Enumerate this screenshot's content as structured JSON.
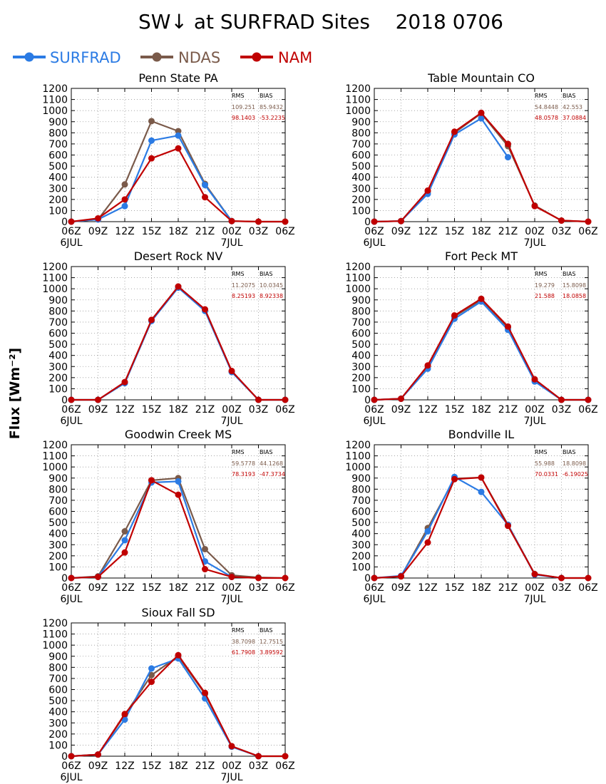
{
  "title": "SW↓ at SURFRAD Sites    2018 0706",
  "ylabel": "Flux [Wm⁻²]",
  "legend": [
    {
      "name": "SURFRAD",
      "color": "#2b7be4"
    },
    {
      "name": "NDAS",
      "color": "#7a5a4a"
    },
    {
      "name": "NAM",
      "color": "#c00000"
    }
  ],
  "stats_header": {
    "rms": "RMS",
    "bias": "BIAS"
  },
  "axes": {
    "x_ticks": [
      "06Z",
      "09Z",
      "12Z",
      "15Z",
      "18Z",
      "21Z",
      "00Z",
      "03Z",
      "06Z"
    ],
    "x_date_labels": [
      {
        "index": 0,
        "text": "6JUL"
      },
      {
        "index": 6,
        "text": "7JUL"
      }
    ],
    "ylim": [
      0,
      1200
    ],
    "y_ticks": [
      0,
      100,
      200,
      300,
      400,
      500,
      600,
      700,
      800,
      900,
      1000,
      1100,
      1200
    ],
    "grid": true
  },
  "chart_data": [
    {
      "type": "line",
      "title": "Penn State PA",
      "x": [
        "06Z",
        "09Z",
        "12Z",
        "15Z",
        "18Z",
        "21Z",
        "00Z",
        "03Z",
        "06Z"
      ],
      "series": [
        {
          "name": "SURFRAD",
          "values": [
            0,
            20,
            140,
            730,
            775,
            330,
            5,
            null,
            null
          ]
        },
        {
          "name": "NDAS",
          "values": [
            0,
            20,
            335,
            905,
            815,
            340,
            5,
            0,
            0
          ]
        },
        {
          "name": "NAM",
          "values": [
            0,
            30,
            200,
            570,
            660,
            220,
            5,
            0,
            0
          ]
        }
      ],
      "stats": {
        "ndas": {
          "rms": "109.251",
          "bias": "85.9432"
        },
        "nam": {
          "rms": "98.1403",
          "bias": "-53.2235"
        }
      }
    },
    {
      "type": "line",
      "title": "Table Mountain CO",
      "x": [
        "06Z",
        "09Z",
        "12Z",
        "15Z",
        "18Z",
        "21Z",
        "00Z",
        "03Z",
        "06Z"
      ],
      "series": [
        {
          "name": "SURFRAD",
          "values": [
            0,
            5,
            250,
            785,
            930,
            580,
            null,
            null,
            null
          ]
        },
        {
          "name": "NDAS",
          "values": [
            0,
            5,
            270,
            800,
            975,
            680,
            145,
            10,
            0
          ]
        },
        {
          "name": "NAM",
          "values": [
            0,
            5,
            280,
            810,
            980,
            700,
            140,
            10,
            0
          ]
        }
      ],
      "stats": {
        "ndas": {
          "rms": "54.8448",
          "bias": "42.553"
        },
        "nam": {
          "rms": "48.0578",
          "bias": "37.0884"
        }
      }
    },
    {
      "type": "line",
      "title": "Desert Rock NV",
      "x": [
        "06Z",
        "09Z",
        "12Z",
        "15Z",
        "18Z",
        "21Z",
        "00Z",
        "03Z",
        "06Z"
      ],
      "series": [
        {
          "name": "SURFRAD",
          "values": [
            0,
            0,
            150,
            710,
            1010,
            800,
            250,
            0,
            0
          ]
        },
        {
          "name": "NDAS",
          "values": [
            0,
            0,
            155,
            715,
            1020,
            810,
            255,
            0,
            0
          ]
        },
        {
          "name": "NAM",
          "values": [
            0,
            0,
            160,
            720,
            1020,
            815,
            260,
            0,
            0
          ]
        }
      ],
      "stats": {
        "ndas": {
          "rms": "11.2075",
          "bias": "10.0345"
        },
        "nam": {
          "rms": "8.25193",
          "bias": "8.92338"
        }
      }
    },
    {
      "type": "line",
      "title": "Fort Peck MT",
      "x": [
        "06Z",
        "09Z",
        "12Z",
        "15Z",
        "18Z",
        "21Z",
        "00Z",
        "03Z",
        "06Z"
      ],
      "series": [
        {
          "name": "SURFRAD",
          "values": [
            0,
            10,
            280,
            730,
            885,
            630,
            165,
            0,
            0
          ]
        },
        {
          "name": "NDAS",
          "values": [
            0,
            10,
            300,
            750,
            900,
            650,
            180,
            0,
            0
          ]
        },
        {
          "name": "NAM",
          "values": [
            0,
            10,
            310,
            760,
            910,
            660,
            185,
            0,
            0
          ]
        }
      ],
      "stats": {
        "ndas": {
          "rms": "19.279",
          "bias": "15.8098"
        },
        "nam": {
          "rms": "21.588",
          "bias": "18.0858"
        }
      }
    },
    {
      "type": "line",
      "title": "Goodwin Creek MS",
      "x": [
        "06Z",
        "09Z",
        "12Z",
        "15Z",
        "18Z",
        "21Z",
        "00Z",
        "03Z",
        "06Z"
      ],
      "series": [
        {
          "name": "SURFRAD",
          "values": [
            0,
            10,
            340,
            860,
            870,
            150,
            10,
            null,
            null
          ]
        },
        {
          "name": "NDAS",
          "values": [
            0,
            15,
            420,
            880,
            900,
            260,
            25,
            5,
            0
          ]
        },
        {
          "name": "NAM",
          "values": [
            0,
            10,
            230,
            880,
            750,
            80,
            10,
            0,
            0
          ]
        }
      ],
      "stats": {
        "ndas": {
          "rms": "59.5778",
          "bias": "44.1268"
        },
        "nam": {
          "rms": "78.3193",
          "bias": "-47.3734"
        }
      }
    },
    {
      "type": "line",
      "title": "Bondville IL",
      "x": [
        "06Z",
        "09Z",
        "12Z",
        "15Z",
        "18Z",
        "21Z",
        "00Z",
        "03Z",
        "06Z"
      ],
      "series": [
        {
          "name": "SURFRAD",
          "values": [
            0,
            20,
            420,
            910,
            775,
            480,
            30,
            0,
            null
          ]
        },
        {
          "name": "NDAS",
          "values": [
            0,
            15,
            450,
            895,
            905,
            480,
            35,
            0,
            0
          ]
        },
        {
          "name": "NAM",
          "values": [
            0,
            15,
            320,
            890,
            905,
            470,
            35,
            0,
            0
          ]
        }
      ],
      "stats": {
        "ndas": {
          "rms": "55.988",
          "bias": "18.8098"
        },
        "nam": {
          "rms": "70.0331",
          "bias": "-6.19025"
        }
      }
    },
    {
      "type": "line",
      "title": "Sioux Fall SD",
      "x": [
        "06Z",
        "09Z",
        "12Z",
        "15Z",
        "18Z",
        "21Z",
        "00Z",
        "03Z",
        "06Z"
      ],
      "series": [
        {
          "name": "SURFRAD",
          "values": [
            0,
            15,
            330,
            790,
            880,
            520,
            85,
            0,
            null
          ]
        },
        {
          "name": "NDAS",
          "values": [
            0,
            15,
            370,
            730,
            900,
            560,
            90,
            0,
            0
          ]
        },
        {
          "name": "NAM",
          "values": [
            0,
            15,
            380,
            670,
            910,
            570,
            90,
            0,
            0
          ]
        }
      ],
      "stats": {
        "ndas": {
          "rms": "38.7098",
          "bias": "12.7515"
        },
        "nam": {
          "rms": "61.7908",
          "bias": "3.89592"
        }
      }
    }
  ]
}
